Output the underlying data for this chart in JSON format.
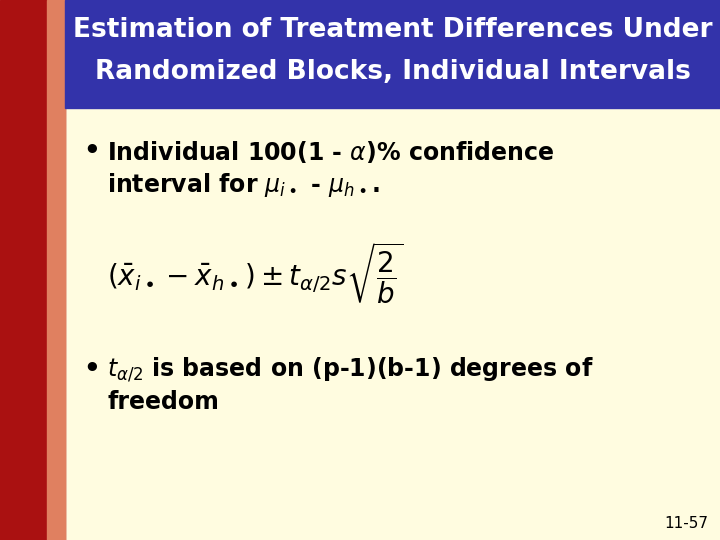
{
  "title_line1": "Estimation of Treatment Differences Under",
  "title_line2": "Randomized Blocks, Individual Intervals",
  "title_bg": "#3333AA",
  "title_fg": "#FFFFFF",
  "left_bar_dark": "#AA1111",
  "left_bar_light": "#E08060",
  "body_bg": "#FFFCE0",
  "text_color": "#000000",
  "page_num": "11-57",
  "title_fontsize": 19,
  "body_fontsize": 17,
  "formula_fontsize": 20
}
